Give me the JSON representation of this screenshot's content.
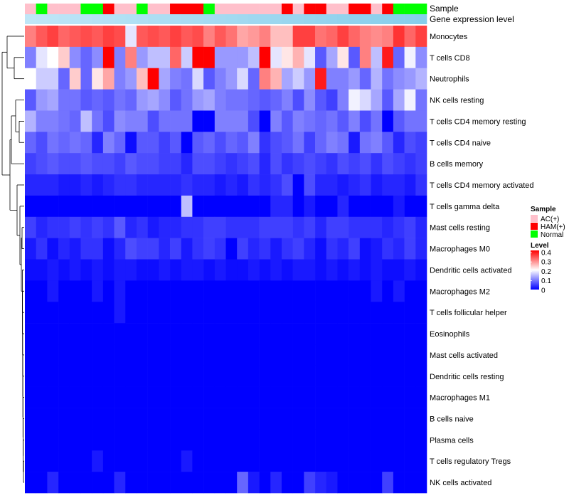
{
  "chart_data": {
    "type": "heatmap",
    "annotation_titles": [
      "Sample",
      "Gene expression level"
    ],
    "rows": [
      "Monocytes",
      "T cells CD8",
      "Neutrophils",
      "NK cells resting",
      "T cells CD4 memory resting",
      "T cells CD4 naive",
      "B cells memory",
      "T cells CD4 memory activated",
      "T cells gamma delta",
      "Mast cells resting",
      "Macrophages M0",
      "Dendritic cells activated",
      "Macrophages M2",
      "T cells follicular helper",
      "Eosinophils",
      "Mast cells activated",
      "Dendritic cells resting",
      "Macrophages M1",
      "B cells naive",
      "Plasma cells",
      "T cells regulatory  Tregs",
      "NK cells activated"
    ],
    "sample_groups": [
      "AC(+)",
      "Normal",
      "AC(+)",
      "AC(+)",
      "AC(+)",
      "Normal",
      "Normal",
      "HAM(+)",
      "AC(+)",
      "AC(+)",
      "Normal",
      "AC(+)",
      "AC(+)",
      "HAM(+)",
      "HAM(+)",
      "HAM(+)",
      "Normal",
      "AC(+)",
      "AC(+)",
      "AC(+)",
      "AC(+)",
      "AC(+)",
      "AC(+)",
      "HAM(+)",
      "AC(+)",
      "HAM(+)",
      "HAM(+)",
      "AC(+)",
      "AC(+)",
      "HAM(+)",
      "HAM(+)",
      "AC(+)",
      "HAM(+)",
      "Normal",
      "Normal",
      "Normal"
    ],
    "values": [
      [
        0.3,
        0.33,
        0.35,
        0.32,
        0.33,
        0.34,
        0.33,
        0.35,
        0.34,
        0.18,
        0.33,
        0.34,
        0.33,
        0.35,
        0.33,
        0.34,
        0.3,
        0.33,
        0.31,
        0.27,
        0.28,
        0.3,
        0.25,
        0.25,
        0.35,
        0.35,
        0.31,
        0.32,
        0.35,
        0.32,
        0.3,
        0.29,
        0.3,
        0.36,
        0.32,
        0.35
      ],
      [
        0.1,
        0.18,
        0.2,
        0.24,
        0.11,
        0.08,
        0.11,
        0.4,
        0.1,
        0.3,
        0.12,
        0.15,
        0.15,
        0.32,
        0.16,
        0.4,
        0.4,
        0.12,
        0.12,
        0.12,
        0.15,
        0.4,
        0.18,
        0.22,
        0.26,
        0.18,
        0.07,
        0.13,
        0.22,
        0.07,
        0.3,
        0.15,
        0.38,
        0.08,
        0.19,
        0.11
      ],
      [
        0.2,
        0.16,
        0.16,
        0.08,
        0.24,
        0.08,
        0.22,
        0.27,
        0.1,
        0.12,
        0.25,
        0.4,
        0.13,
        0.1,
        0.09,
        0.17,
        0.07,
        0.1,
        0.12,
        0.17,
        0.08,
        0.3,
        0.26,
        0.13,
        0.16,
        0.12,
        0.38,
        0.1,
        0.1,
        0.12,
        0.08,
        0.14,
        0.09,
        0.11,
        0.12,
        0.14
      ],
      [
        0.07,
        0.12,
        0.13,
        0.09,
        0.09,
        0.07,
        0.08,
        0.07,
        0.09,
        0.08,
        0.12,
        0.13,
        0.11,
        0.07,
        0.09,
        0.12,
        0.13,
        0.1,
        0.09,
        0.09,
        0.08,
        0.07,
        0.08,
        0.1,
        0.06,
        0.11,
        0.07,
        0.05,
        0.1,
        0.19,
        0.17,
        0.13,
        0.07,
        0.13,
        0.19,
        0.09
      ],
      [
        0.14,
        0.1,
        0.1,
        0.09,
        0.08,
        0.15,
        0.09,
        0.06,
        0.11,
        0.1,
        0.1,
        0.06,
        0.09,
        0.09,
        0.09,
        0.0,
        0.0,
        0.1,
        0.1,
        0.1,
        0.06,
        0.0,
        0.1,
        0.07,
        0.1,
        0.09,
        0.08,
        0.09,
        0.07,
        0.1,
        0.06,
        0.09,
        0.0,
        0.07,
        0.09,
        0.09
      ],
      [
        0.08,
        0.06,
        0.09,
        0.08,
        0.09,
        0.08,
        0.03,
        0.1,
        0.08,
        0.01,
        0.07,
        0.07,
        0.05,
        0.07,
        0.0,
        0.07,
        0.08,
        0.06,
        0.08,
        0.07,
        0.1,
        0.04,
        0.06,
        0.07,
        0.09,
        0.05,
        0.08,
        0.1,
        0.09,
        0.02,
        0.09,
        0.1,
        0.07,
        0.03,
        0.06,
        0.05
      ],
      [
        0.05,
        0.06,
        0.07,
        0.06,
        0.06,
        0.07,
        0.06,
        0.06,
        0.05,
        0.07,
        0.06,
        0.06,
        0.05,
        0.05,
        0.03,
        0.06,
        0.06,
        0.05,
        0.04,
        0.05,
        0.06,
        0.03,
        0.06,
        0.04,
        0.05,
        0.06,
        0.05,
        0.04,
        0.06,
        0.05,
        0.06,
        0.04,
        0.06,
        0.05,
        0.04,
        0.05
      ],
      [
        0.03,
        0.03,
        0.03,
        0.02,
        0.02,
        0.03,
        0.02,
        0.03,
        0.04,
        0.04,
        0.03,
        0.03,
        0.03,
        0.03,
        0.04,
        0.03,
        0.03,
        0.02,
        0.03,
        0.02,
        0.04,
        0.03,
        0.04,
        0.06,
        0.0,
        0.06,
        0.03,
        0.03,
        0.02,
        0.03,
        0.04,
        0.02,
        0.03,
        0.03,
        0.02,
        0.04
      ],
      [
        0.0,
        0.0,
        0.0,
        0.0,
        0.0,
        0.0,
        0.0,
        0.0,
        0.0,
        0.0,
        0.0,
        0.0,
        0.0,
        0.0,
        0.15,
        0.0,
        0.0,
        0.0,
        0.0,
        0.0,
        0.0,
        0.0,
        0.03,
        0.03,
        0.0,
        0.02,
        0.0,
        0.0,
        0.03,
        0.0,
        0.0,
        0.0,
        0.0,
        0.02,
        0.0,
        0.0
      ],
      [
        0.05,
        0.03,
        0.04,
        0.04,
        0.05,
        0.04,
        0.05,
        0.04,
        0.07,
        0.03,
        0.04,
        0.02,
        0.03,
        0.03,
        0.04,
        0.04,
        0.05,
        0.05,
        0.04,
        0.04,
        0.04,
        0.05,
        0.05,
        0.05,
        0.04,
        0.05,
        0.03,
        0.05,
        0.05,
        0.04,
        0.04,
        0.04,
        0.03,
        0.04,
        0.05,
        0.03
      ],
      [
        0.02,
        0.04,
        0.01,
        0.03,
        0.02,
        0.04,
        0.04,
        0.01,
        0.03,
        0.06,
        0.05,
        0.05,
        0.03,
        0.05,
        0.02,
        0.04,
        0.05,
        0.04,
        0.0,
        0.05,
        0.03,
        0.04,
        0.02,
        0.04,
        0.05,
        0.03,
        0.01,
        0.04,
        0.03,
        0.05,
        0.01,
        0.02,
        0.04,
        0.03,
        0.05,
        0.03
      ],
      [
        0.01,
        0.01,
        0.02,
        0.01,
        0.02,
        0.01,
        0.02,
        0.01,
        0.02,
        0.02,
        0.01,
        0.01,
        0.02,
        0.01,
        0.02,
        0.02,
        0.01,
        0.02,
        0.01,
        0.01,
        0.02,
        0.01,
        0.02,
        0.01,
        0.02,
        0.02,
        0.01,
        0.02,
        0.01,
        0.02,
        0.01,
        0.02,
        0.01,
        0.01,
        0.02,
        0.01
      ],
      [
        0.0,
        0.0,
        0.02,
        0.0,
        0.0,
        0.0,
        0.02,
        0.0,
        0.02,
        0.0,
        0.0,
        0.0,
        0.0,
        0.0,
        0.0,
        0.0,
        0.0,
        0.0,
        0.0,
        0.0,
        0.0,
        0.0,
        0.0,
        0.0,
        0.0,
        0.0,
        0.0,
        0.0,
        0.0,
        0.0,
        0.0,
        0.02,
        0.0,
        0.02,
        0.0,
        0.0
      ],
      [
        0.0,
        0.0,
        0.0,
        0.0,
        0.0,
        0.0,
        0.0,
        0.0,
        0.02,
        0.0,
        0.0,
        0.0,
        0.0,
        0.0,
        0.0,
        0.0,
        0.0,
        0.0,
        0.0,
        0.0,
        0.0,
        0.0,
        0.0,
        0.0,
        0.0,
        0.0,
        0.0,
        0.0,
        0.0,
        0.0,
        0.0,
        0.0,
        0.0,
        0.0,
        0.0,
        0.0
      ],
      [
        0.0,
        0.0,
        0.0,
        0.0,
        0.0,
        0.0,
        0.0,
        0.0,
        0.0,
        0.0,
        0.0,
        0.0,
        0.0,
        0.0,
        0.0,
        0.0,
        0.0,
        0.0,
        0.0,
        0.0,
        0.0,
        0.0,
        0.0,
        0.0,
        0.0,
        0.0,
        0.0,
        0.0,
        0.0,
        0.0,
        0.0,
        0.0,
        0.0,
        0.0,
        0.0,
        0.0
      ],
      [
        0.0,
        0.0,
        0.0,
        0.0,
        0.0,
        0.0,
        0.0,
        0.0,
        0.0,
        0.0,
        0.0,
        0.0,
        0.0,
        0.0,
        0.0,
        0.0,
        0.0,
        0.0,
        0.0,
        0.0,
        0.0,
        0.0,
        0.0,
        0.0,
        0.0,
        0.0,
        0.0,
        0.0,
        0.0,
        0.0,
        0.0,
        0.0,
        0.0,
        0.0,
        0.0,
        0.0
      ],
      [
        0.0,
        0.0,
        0.0,
        0.0,
        0.0,
        0.0,
        0.0,
        0.0,
        0.0,
        0.0,
        0.0,
        0.0,
        0.0,
        0.0,
        0.0,
        0.0,
        0.0,
        0.0,
        0.0,
        0.0,
        0.0,
        0.0,
        0.0,
        0.0,
        0.0,
        0.0,
        0.0,
        0.0,
        0.0,
        0.0,
        0.0,
        0.0,
        0.0,
        0.0,
        0.0,
        0.0
      ],
      [
        0.0,
        0.0,
        0.0,
        0.0,
        0.0,
        0.0,
        0.0,
        0.0,
        0.0,
        0.0,
        0.0,
        0.0,
        0.0,
        0.0,
        0.0,
        0.0,
        0.0,
        0.0,
        0.0,
        0.0,
        0.0,
        0.0,
        0.0,
        0.0,
        0.0,
        0.0,
        0.0,
        0.0,
        0.0,
        0.0,
        0.0,
        0.0,
        0.0,
        0.0,
        0.0,
        0.0
      ],
      [
        0.0,
        0.0,
        0.0,
        0.0,
        0.0,
        0.0,
        0.0,
        0.0,
        0.0,
        0.0,
        0.0,
        0.0,
        0.0,
        0.0,
        0.0,
        0.0,
        0.0,
        0.0,
        0.0,
        0.0,
        0.0,
        0.0,
        0.0,
        0.0,
        0.0,
        0.0,
        0.0,
        0.0,
        0.0,
        0.0,
        0.0,
        0.0,
        0.0,
        0.0,
        0.0,
        0.0
      ],
      [
        0.0,
        0.0,
        0.0,
        0.0,
        0.0,
        0.0,
        0.0,
        0.0,
        0.0,
        0.0,
        0.0,
        0.0,
        0.0,
        0.0,
        0.0,
        0.0,
        0.0,
        0.0,
        0.0,
        0.0,
        0.0,
        0.0,
        0.0,
        0.0,
        0.0,
        0.0,
        0.0,
        0.0,
        0.0,
        0.0,
        0.0,
        0.0,
        0.0,
        0.0,
        0.0,
        0.0
      ],
      [
        0.0,
        0.0,
        0.0,
        0.0,
        0.0,
        0.0,
        0.02,
        0.0,
        0.0,
        0.0,
        0.0,
        0.0,
        0.0,
        0.0,
        0.02,
        0.0,
        0.0,
        0.0,
        0.0,
        0.0,
        0.0,
        0.0,
        0.0,
        0.0,
        0.0,
        0.0,
        0.0,
        0.0,
        0.0,
        0.0,
        0.0,
        0.0,
        0.0,
        0.0,
        0.0,
        0.0
      ],
      [
        0.0,
        0.0,
        0.03,
        0.0,
        0.0,
        0.0,
        0.0,
        0.0,
        0.03,
        0.0,
        0.0,
        0.0,
        0.0,
        0.0,
        0.0,
        0.0,
        0.0,
        0.0,
        0.0,
        0.08,
        0.02,
        0.0,
        0.03,
        0.0,
        0.0,
        0.05,
        0.03,
        0.02,
        0.0,
        0.0,
        0.0,
        0.0,
        0.05,
        0.0,
        0.0,
        0.0
      ]
    ],
    "color_scale": {
      "min": 0,
      "mid": 0.2,
      "max": 0.4,
      "low": "#0000ff",
      "midcolor": "#ffffff",
      "high": "#ff0000"
    },
    "gene_expression_colors": {
      "low": "#bfe6f7",
      "high": "#87ceeb"
    },
    "legend_sample": {
      "title": "Sample",
      "items": [
        {
          "label": "AC(+)",
          "color": "#ffc0cb"
        },
        {
          "label": "HAM(+)",
          "color": "#ff0000"
        },
        {
          "label": "Normal",
          "color": "#00ff00"
        }
      ]
    },
    "legend_level": {
      "title": "Level",
      "ticks": [
        "0.4",
        "0.3",
        "0.2",
        "0.1",
        "0"
      ]
    },
    "row_dendrogram": true
  }
}
